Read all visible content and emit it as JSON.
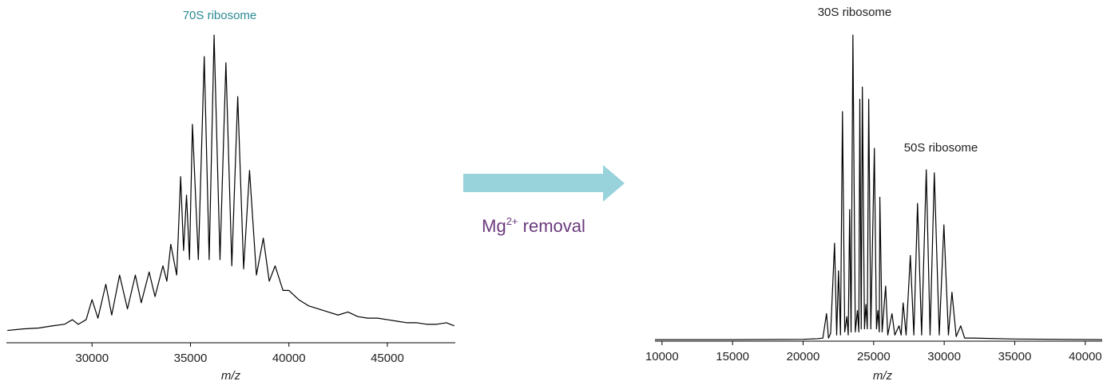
{
  "chart_data": [
    {
      "type": "line",
      "title": "70S ribosome",
      "title_color": "#2a8a94",
      "x_label": "m/z",
      "color": "#000000",
      "x": [
        25700,
        26500,
        27300,
        28000,
        28600,
        29000,
        29300,
        29700,
        30000,
        30300,
        30700,
        31000,
        31400,
        31800,
        32200,
        32500,
        32900,
        33200,
        33600,
        33800,
        34000,
        34300,
        34500,
        34650,
        34800,
        34950,
        35100,
        35400,
        35700,
        35950,
        36200,
        36500,
        36800,
        37100,
        37400,
        37700,
        38000,
        38350,
        38700,
        39000,
        39300,
        39700,
        40000,
        40500,
        41000,
        41500,
        42000,
        42500,
        43000,
        43500,
        44000,
        44500,
        45000,
        45500,
        46000,
        46500,
        47000,
        47500,
        48000,
        48400
      ],
      "values": [
        4,
        4.5,
        4.8,
        5.5,
        6,
        7.5,
        6,
        7.5,
        14,
        8,
        19,
        9,
        22,
        11,
        22,
        13,
        23,
        15,
        25,
        20,
        32,
        22,
        54,
        30,
        48,
        27,
        71,
        27,
        93,
        27,
        100,
        27,
        91,
        25,
        80,
        24,
        56,
        22,
        34,
        20,
        25,
        17,
        17,
        14,
        12,
        11,
        10,
        9,
        10,
        8.5,
        8,
        8,
        7.5,
        7,
        6.5,
        6.5,
        6,
        6,
        6.5,
        5.5
      ],
      "xlim": [
        25650,
        48450
      ],
      "xticks": [
        30000,
        35000,
        40000,
        45000
      ],
      "ylim": [
        0,
        100
      ]
    },
    {
      "type": "line",
      "annotations": [
        "30S ribosome",
        "50S ribosome"
      ],
      "x_label": "m/z",
      "color": "#000000",
      "x": [
        9500,
        15000,
        20000,
        21000,
        21400,
        21660,
        21800,
        21950,
        22230,
        22380,
        22510,
        22650,
        22790,
        22950,
        23100,
        23200,
        23300,
        23400,
        23530,
        23700,
        23850,
        23950,
        24020,
        24120,
        24200,
        24350,
        24450,
        24550,
        24650,
        24800,
        25050,
        25200,
        25300,
        25400,
        25440,
        25600,
        25850,
        26000,
        26300,
        26500,
        26800,
        26950,
        27090,
        27300,
        27600,
        27850,
        28110,
        28400,
        28730,
        29000,
        29300,
        29650,
        29980,
        30300,
        30550,
        30850,
        31170,
        31450,
        32000,
        35000,
        41200
      ],
      "values": [
        0.5,
        0.5,
        0.6,
        0.8,
        1,
        9,
        1,
        2.5,
        32,
        2,
        23,
        2,
        75,
        3,
        8,
        2,
        43,
        3,
        100,
        3,
        10,
        3,
        79,
        4,
        83,
        4,
        12,
        4,
        79,
        4,
        63,
        4,
        10,
        3,
        47,
        3,
        18,
        2,
        9,
        2,
        5,
        2,
        12.5,
        2,
        28,
        2,
        45,
        2,
        56,
        2,
        55,
        2,
        38,
        2,
        16,
        1.5,
        5,
        1,
        1,
        0.7,
        0.5
      ],
      "xlim": [
        9500,
        41200
      ],
      "xticks": [
        10000,
        15000,
        20000,
        25000,
        30000,
        35000,
        40000
      ],
      "ylim": [
        0,
        100
      ]
    }
  ],
  "transition": {
    "label": "Mg",
    "superscript": "2+",
    "label_end": " removal",
    "label_color": "#6b3a7d",
    "arrow_color": "#98d3dc"
  }
}
